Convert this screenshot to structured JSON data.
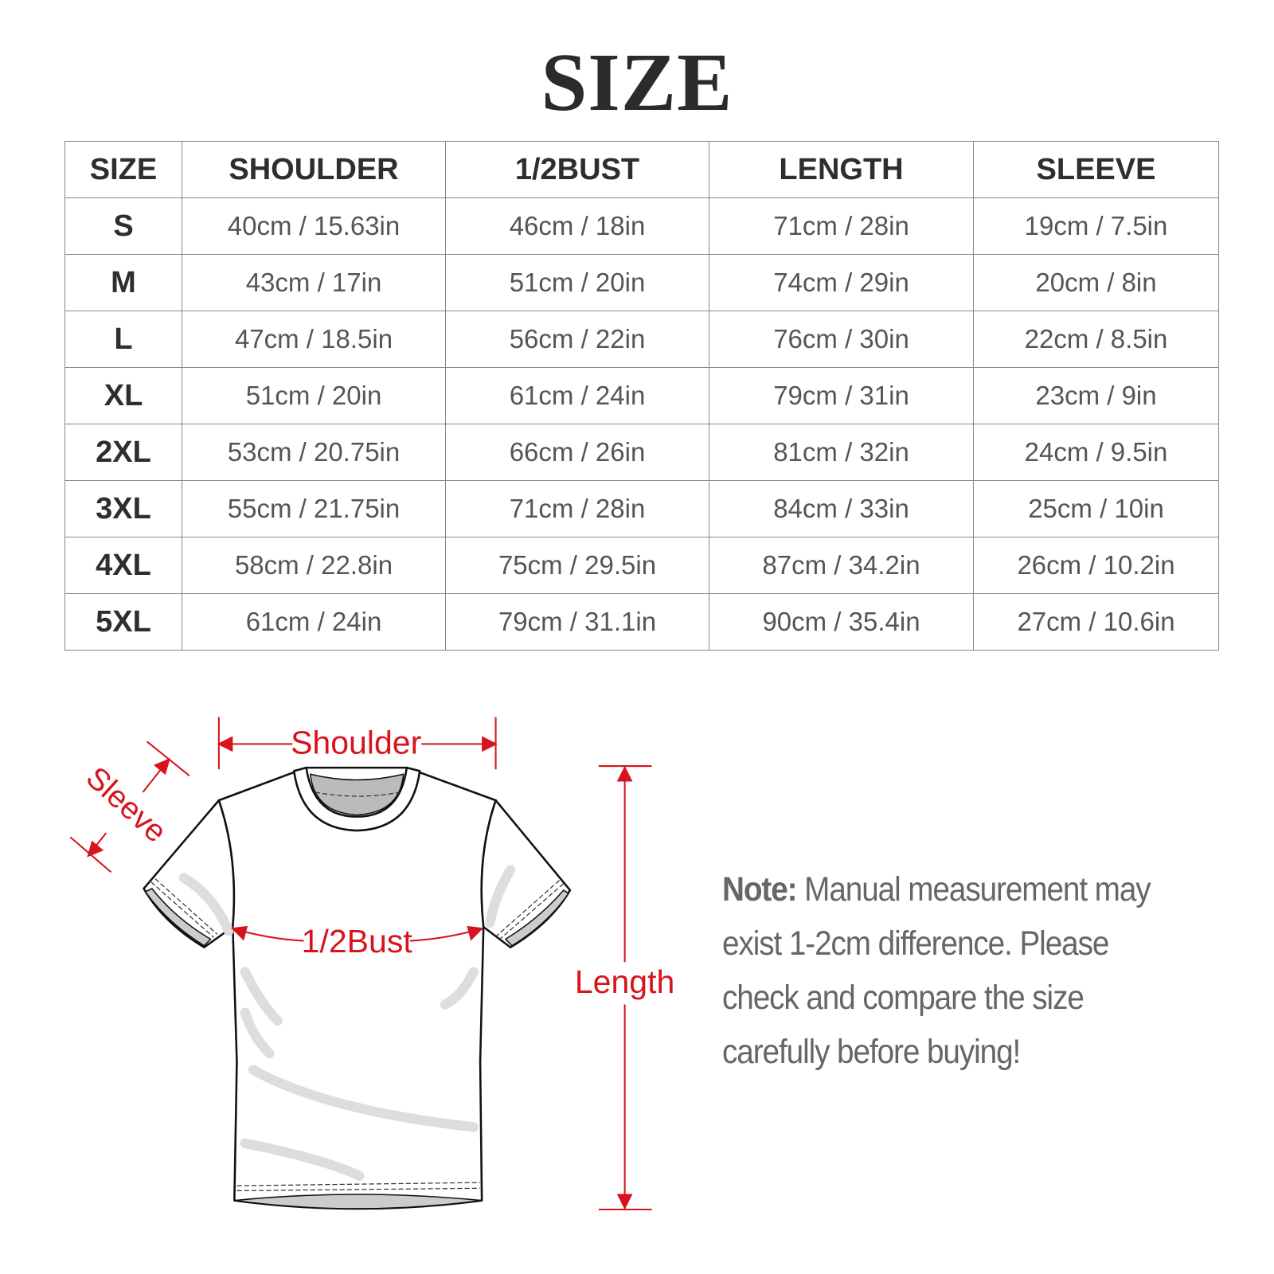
{
  "title": "SIZE",
  "table": {
    "headers": [
      "SIZE",
      "SHOULDER",
      "1/2BUST",
      "LENGTH",
      "SLEEVE"
    ],
    "rows": [
      [
        "S",
        "40cm / 15.63in",
        "46cm / 18in",
        "71cm / 28in",
        "19cm / 7.5in"
      ],
      [
        "M",
        "43cm / 17in",
        "51cm / 20in",
        "74cm / 29in",
        "20cm / 8in"
      ],
      [
        "L",
        "47cm / 18.5in",
        "56cm / 22in",
        "76cm / 30in",
        "22cm / 8.5in"
      ],
      [
        "XL",
        "51cm / 20in",
        "61cm / 24in",
        "79cm / 31in",
        "23cm / 9in"
      ],
      [
        "2XL",
        "53cm / 20.75in",
        "66cm / 26in",
        "81cm / 32in",
        "24cm / 9.5in"
      ],
      [
        "3XL",
        "55cm / 21.75in",
        "71cm / 28in",
        "84cm / 33in",
        "25cm / 10in"
      ],
      [
        "4XL",
        "58cm / 22.8in",
        "75cm / 29.5in",
        "87cm / 34.2in",
        "26cm / 10.2in"
      ],
      [
        "5XL",
        "61cm / 24in",
        "79cm / 31.1in",
        "90cm / 35.4in",
        "27cm / 10.6in"
      ]
    ]
  },
  "diagram": {
    "labels": {
      "shoulder": "Shoulder",
      "sleeve": "Sleeve",
      "bust": "1/2Bust",
      "length": "Length"
    },
    "accent_color": "#d7141d"
  },
  "note": {
    "label": "Note:",
    "text": " Manual measurement may exist 1-2cm difference. Please check and compare the size carefully before buying!"
  }
}
